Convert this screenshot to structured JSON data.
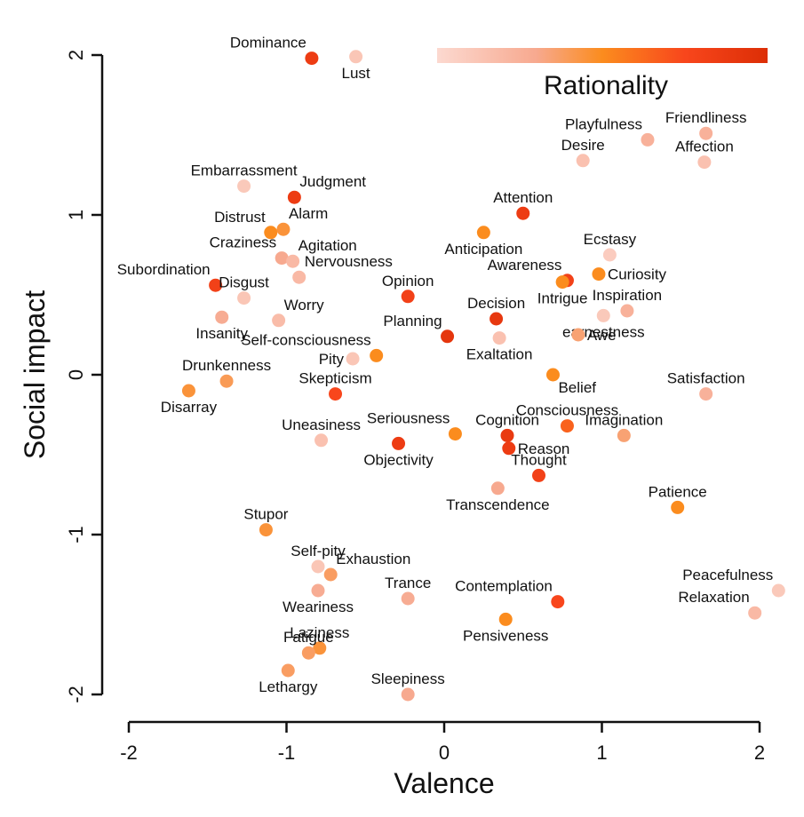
{
  "chart_data": {
    "type": "scatter",
    "title": "",
    "xlabel": "Valence",
    "ylabel": "Social impact",
    "xlim": [
      -2,
      2
    ],
    "ylim": [
      -2,
      2
    ],
    "xticks": [
      "-2",
      "-1",
      "0",
      "1",
      "2"
    ],
    "yticks": [
      "-2",
      "-1",
      "0",
      "1",
      "2"
    ],
    "grid": false,
    "legend": {
      "title": "Rationality",
      "type": "colorbar",
      "placement": "top-right",
      "colors": [
        "#fcd9d0",
        "#f7a98f",
        "#fb8c1e",
        "#f8461c",
        "#dc2e06"
      ]
    },
    "points": [
      {
        "label": "Dominance",
        "x": -0.84,
        "y": 1.98,
        "rationality": 0.85,
        "label_pos": "above-left"
      },
      {
        "label": "Lust",
        "x": -0.56,
        "y": 1.99,
        "rationality": 0.12,
        "label_pos": "below"
      },
      {
        "label": "Embarrassment",
        "x": -1.27,
        "y": 1.18,
        "rationality": 0.1,
        "label_pos": "above"
      },
      {
        "label": "Judgment",
        "x": -0.95,
        "y": 1.11,
        "rationality": 0.85,
        "label_pos": "above-right"
      },
      {
        "label": "Distrust",
        "x": -1.1,
        "y": 0.89,
        "rationality": 0.5,
        "label_pos": "above-left"
      },
      {
        "label": "Alarm",
        "x": -1.02,
        "y": 0.91,
        "rationality": 0.45,
        "label_pos": "above-right"
      },
      {
        "label": "Craziness",
        "x": -1.03,
        "y": 0.73,
        "rationality": 0.3,
        "label_pos": "above-left"
      },
      {
        "label": "Agitation",
        "x": -0.96,
        "y": 0.71,
        "rationality": 0.2,
        "label_pos": "above-right"
      },
      {
        "label": "Subordination",
        "x": -1.45,
        "y": 0.56,
        "rationality": 0.8,
        "label_pos": "above-left"
      },
      {
        "label": "Nervousness",
        "x": -0.92,
        "y": 0.61,
        "rationality": 0.2,
        "label_pos": "above-right"
      },
      {
        "label": "Disgust",
        "x": -1.27,
        "y": 0.48,
        "rationality": 0.12,
        "label_pos": "above"
      },
      {
        "label": "Worry",
        "x": -1.05,
        "y": 0.34,
        "rationality": 0.18,
        "label_pos": "above-right"
      },
      {
        "label": "Insanity",
        "x": -1.41,
        "y": 0.36,
        "rationality": 0.28,
        "label_pos": "below"
      },
      {
        "label": "Opinion",
        "x": -0.23,
        "y": 0.49,
        "rationality": 0.8,
        "label_pos": "above"
      },
      {
        "label": "Decision",
        "x": 0.33,
        "y": 0.35,
        "rationality": 0.9,
        "label_pos": "above"
      },
      {
        "label": "Planning",
        "x": 0.02,
        "y": 0.24,
        "rationality": 0.92,
        "label_pos": "above-left"
      },
      {
        "label": "Exaltation",
        "x": 0.35,
        "y": 0.23,
        "rationality": 0.15,
        "label_pos": "below"
      },
      {
        "label": "Self-consciousness",
        "x": -0.43,
        "y": 0.12,
        "rationality": 0.5,
        "label_pos": "above-left"
      },
      {
        "label": "Pity",
        "x": -0.58,
        "y": 0.1,
        "rationality": 0.12,
        "label_pos": "left"
      },
      {
        "label": "Drunkenness",
        "x": -1.38,
        "y": -0.04,
        "rationality": 0.4,
        "label_pos": "above"
      },
      {
        "label": "Disarray",
        "x": -1.62,
        "y": -0.1,
        "rationality": 0.45,
        "label_pos": "below"
      },
      {
        "label": "Skepticism",
        "x": -0.69,
        "y": -0.12,
        "rationality": 0.75,
        "label_pos": "above"
      },
      {
        "label": "Attention",
        "x": 0.5,
        "y": 1.01,
        "rationality": 0.85,
        "label_pos": "above"
      },
      {
        "label": "Anticipation",
        "x": 0.25,
        "y": 0.89,
        "rationality": 0.5,
        "label_pos": "below"
      },
      {
        "label": "Awareness",
        "x": 0.78,
        "y": 0.59,
        "rationality": 0.8,
        "label_pos": "above-left"
      },
      {
        "label": "Intrigue",
        "x": 0.75,
        "y": 0.58,
        "rationality": 0.5,
        "label_pos": "below"
      },
      {
        "label": "Ecstasy",
        "x": 1.05,
        "y": 0.75,
        "rationality": 0.08,
        "label_pos": "above"
      },
      {
        "label": "Curiosity",
        "x": 0.98,
        "y": 0.63,
        "rationality": 0.5,
        "label_pos": "right"
      },
      {
        "label": "Inspiration",
        "x": 1.16,
        "y": 0.4,
        "rationality": 0.25,
        "label_pos": "above"
      },
      {
        "label": "earnestness",
        "x": 1.01,
        "y": 0.37,
        "rationality": 0.1,
        "label_pos": "below"
      },
      {
        "label": "Awe",
        "x": 0.85,
        "y": 0.25,
        "rationality": 0.35,
        "label_pos": "right"
      },
      {
        "label": "Belief",
        "x": 0.69,
        "y": 0.0,
        "rationality": 0.5,
        "label_pos": "below-right"
      },
      {
        "label": "Playfulness",
        "x": 1.29,
        "y": 1.47,
        "rationality": 0.25,
        "label_pos": "above-left"
      },
      {
        "label": "Friendliness",
        "x": 1.66,
        "y": 1.51,
        "rationality": 0.25,
        "label_pos": "above"
      },
      {
        "label": "Desire",
        "x": 0.88,
        "y": 1.34,
        "rationality": 0.15,
        "label_pos": "above"
      },
      {
        "label": "Affection",
        "x": 1.65,
        "y": 1.33,
        "rationality": 0.15,
        "label_pos": "above"
      },
      {
        "label": "Satisfaction",
        "x": 1.66,
        "y": -0.12,
        "rationality": 0.25,
        "label_pos": "above"
      },
      {
        "label": "Seriousness",
        "x": 0.07,
        "y": -0.37,
        "rationality": 0.5,
        "label_pos": "above-left"
      },
      {
        "label": "Cognition",
        "x": 0.4,
        "y": -0.38,
        "rationality": 0.88,
        "label_pos": "above"
      },
      {
        "label": "Consciousness",
        "x": 0.78,
        "y": -0.32,
        "rationality": 0.65,
        "label_pos": "above"
      },
      {
        "label": "Imagination",
        "x": 1.14,
        "y": -0.38,
        "rationality": 0.35,
        "label_pos": "above"
      },
      {
        "label": "Uneasiness",
        "x": -0.78,
        "y": -0.41,
        "rationality": 0.15,
        "label_pos": "above"
      },
      {
        "label": "Objectivity",
        "x": -0.29,
        "y": -0.43,
        "rationality": 0.85,
        "label_pos": "below"
      },
      {
        "label": "Reason",
        "x": 0.41,
        "y": -0.46,
        "rationality": 0.85,
        "label_pos": "right"
      },
      {
        "label": "Thought",
        "x": 0.6,
        "y": -0.63,
        "rationality": 0.8,
        "label_pos": "above"
      },
      {
        "label": "Transcendence",
        "x": 0.34,
        "y": -0.71,
        "rationality": 0.3,
        "label_pos": "below"
      },
      {
        "label": "Patience",
        "x": 1.48,
        "y": -0.83,
        "rationality": 0.5,
        "label_pos": "above"
      },
      {
        "label": "Stupor",
        "x": -1.13,
        "y": -0.97,
        "rationality": 0.45,
        "label_pos": "above"
      },
      {
        "label": "Self-pity",
        "x": -0.8,
        "y": -1.2,
        "rationality": 0.12,
        "label_pos": "above"
      },
      {
        "label": "Exhaustion",
        "x": -0.72,
        "y": -1.25,
        "rationality": 0.38,
        "label_pos": "above-right"
      },
      {
        "label": "Weariness",
        "x": -0.8,
        "y": -1.35,
        "rationality": 0.28,
        "label_pos": "below"
      },
      {
        "label": "Trance",
        "x": -0.23,
        "y": -1.4,
        "rationality": 0.28,
        "label_pos": "above"
      },
      {
        "label": "Laziness",
        "x": -0.79,
        "y": -1.71,
        "rationality": 0.45,
        "label_pos": "above"
      },
      {
        "label": "Fatigue",
        "x": -0.86,
        "y": -1.74,
        "rationality": 0.38,
        "label_pos": "above"
      },
      {
        "label": "Lethargy",
        "x": -0.99,
        "y": -1.85,
        "rationality": 0.38,
        "label_pos": "below"
      },
      {
        "label": "Sleepiness",
        "x": -0.23,
        "y": -2.0,
        "rationality": 0.3,
        "label_pos": "above"
      },
      {
        "label": "Contemplation",
        "x": 0.72,
        "y": -1.42,
        "rationality": 0.75,
        "label_pos": "above-left"
      },
      {
        "label": "Pensiveness",
        "x": 0.39,
        "y": -1.53,
        "rationality": 0.5,
        "label_pos": "below"
      },
      {
        "label": "Peacefulness",
        "x": 2.12,
        "y": -1.35,
        "rationality": 0.1,
        "label_pos": "above-left"
      },
      {
        "label": "Relaxation",
        "x": 1.97,
        "y": -1.49,
        "rationality": 0.2,
        "label_pos": "above-left"
      }
    ]
  }
}
